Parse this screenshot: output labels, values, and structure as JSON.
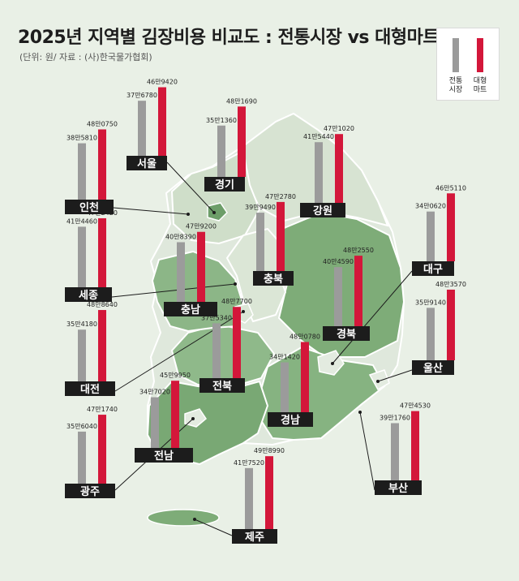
{
  "title": "2025년 지역별 김장비용 비교도 : 전통시장 vs 대형마트",
  "source": "(단위: 원/ 자료 : (사)한국물가협회)",
  "legend": {
    "traditional": "전통\n시장",
    "mart": "대형\n마트"
  },
  "colors": {
    "traditional": "#9b9b9b",
    "mart": "#d3173a",
    "label_bg": "#1c1c1c",
    "map_light": "#dfe8dc",
    "map_dark": "#6fa16c",
    "map_mid": "#9cc096"
  },
  "chart_data": {
    "type": "bar",
    "title": "2025년 지역별 김장비용 비교도 : 전통시장 vs 대형마트",
    "unit": "원",
    "series": [
      {
        "name": "전통시장",
        "color": "#9b9b9b"
      },
      {
        "name": "대형마트",
        "color": "#d3173a"
      }
    ],
    "categories": [
      "서울",
      "경기",
      "인천",
      "강원",
      "세종",
      "충북",
      "충남",
      "대구",
      "경북",
      "대전",
      "전북",
      "울산",
      "경남",
      "광주",
      "전남",
      "부산",
      "제주"
    ],
    "regions": [
      {
        "name": "서울",
        "traditional": 376780,
        "mart": 469420,
        "traditional_label": "37만6780",
        "mart_label": "46만9420"
      },
      {
        "name": "경기",
        "traditional": 351360,
        "mart": 481690,
        "traditional_label": "35만1360",
        "mart_label": "48만1690"
      },
      {
        "name": "인천",
        "traditional": 385810,
        "mart": 480750,
        "traditional_label": "38만5810",
        "mart_label": "48만0750"
      },
      {
        "name": "강원",
        "traditional": 415440,
        "mart": 471020,
        "traditional_label": "41만5440",
        "mart_label": "47만1020"
      },
      {
        "name": "세종",
        "traditional": 414460,
        "mart": 472420,
        "traditional_label": "41만4460",
        "mart_label": "47만2420"
      },
      {
        "name": "충북",
        "traditional": 399490,
        "mart": 472780,
        "traditional_label": "39만9490",
        "mart_label": "47만2780"
      },
      {
        "name": "충남",
        "traditional": 408390,
        "mart": 479200,
        "traditional_label": "40만8390",
        "mart_label": "47만9200"
      },
      {
        "name": "대구",
        "traditional": 340620,
        "mart": 465110,
        "traditional_label": "34만0620",
        "mart_label": "46만5110"
      },
      {
        "name": "경북",
        "traditional": 404590,
        "mart": 482550,
        "traditional_label": "40만4590",
        "mart_label": "48만2550"
      },
      {
        "name": "대전",
        "traditional": 354180,
        "mart": 488640,
        "traditional_label": "35만4180",
        "mart_label": "48만8640"
      },
      {
        "name": "전북",
        "traditional": 375340,
        "mart": 487700,
        "traditional_label": "37만5340",
        "mart_label": "48만7700"
      },
      {
        "name": "울산",
        "traditional": 359140,
        "mart": 483570,
        "traditional_label": "35만9140",
        "mart_label": "48만3570"
      },
      {
        "name": "경남",
        "traditional": 341420,
        "mart": 480780,
        "traditional_label": "34만1420",
        "mart_label": "48만0780"
      },
      {
        "name": "광주",
        "traditional": 356040,
        "mart": 471740,
        "traditional_label": "35만6040",
        "mart_label": "47만1740"
      },
      {
        "name": "전남",
        "traditional": 347020,
        "mart": 459950,
        "traditional_label": "34만7020",
        "mart_label": "45만9950"
      },
      {
        "name": "부산",
        "traditional": 391760,
        "mart": 474530,
        "traditional_label": "39만1760",
        "mart_label": "47만4530"
      },
      {
        "name": "제주",
        "traditional": 417520,
        "mart": 498990,
        "traditional_label": "41만7520",
        "mart_label": "49만8990"
      }
    ]
  }
}
